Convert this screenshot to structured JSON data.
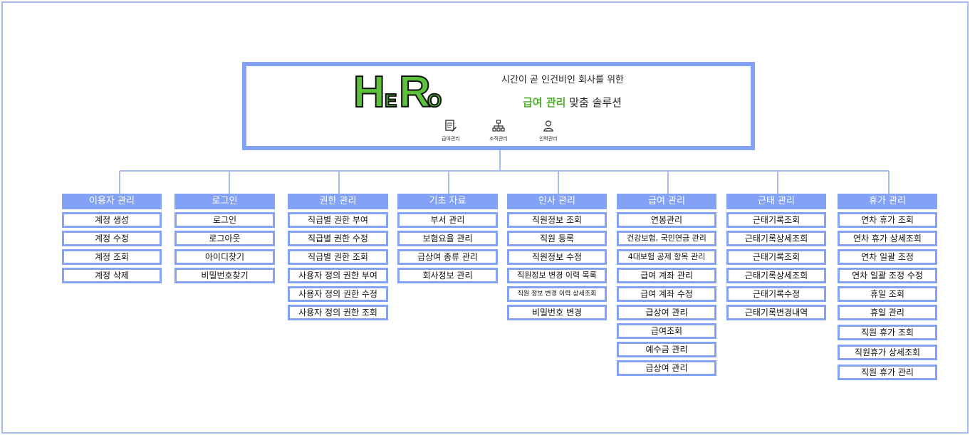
{
  "header": {
    "logo_text": "HeRo",
    "tagline_line1": "시간이 곧 인건비인 회사를 위한",
    "tagline_highlight": "급여 관리",
    "tagline_rest": " 맞춤 솔루션",
    "features": [
      {
        "label": "급여관리",
        "icon": "payroll-document-icon"
      },
      {
        "label": "조직관리",
        "icon": "org-chart-icon"
      },
      {
        "label": "인력관리",
        "icon": "person-icon"
      }
    ]
  },
  "colors": {
    "accent": "#84a2f5",
    "highlight": "#4caf2a"
  },
  "columns": [
    {
      "title": "이용자 관리",
      "items": [
        "계정 생성",
        "계정 수정",
        "계정 조회",
        "계정 삭제"
      ]
    },
    {
      "title": "로그인",
      "items": [
        "로그인",
        "로그아웃",
        "아이디찾기",
        "비밀번호찾기"
      ]
    },
    {
      "title": "권한 관리",
      "items": [
        "직급별 권한 부여",
        "직급별 권한 수정",
        "직급별 권한 조회",
        "사용자 정의 권한 부여",
        "사용자 정의 권한 수정",
        "사용자 정의 권한 조회"
      ]
    },
    {
      "title": "기초 자료",
      "items": [
        "부서 관리",
        "보험요율 관리",
        "급상여 종류 관리",
        "회사정보 관리"
      ]
    },
    {
      "title": "인사 관리",
      "items": [
        "직원정보 조회",
        "직원 등록",
        "직원정보 수정",
        "직원정보 변경 이력 목록",
        "직원 정보 변경 이력 상세조회",
        "비밀번호 변경"
      ]
    },
    {
      "title": "급여 관리",
      "items": [
        "연봉관리",
        "건강보험, 국민연금 관리",
        "4대보험 공제 항목 관리",
        "급여 계좌 관리",
        "급여 계좌 수정",
        "급상여 관리",
        "급여조회",
        "예수금 관리",
        "급상여 관리"
      ]
    },
    {
      "title": "근태 관리",
      "items": [
        "근태기록조회",
        "근태기록상세조회",
        "근태기록조회",
        "근태기록상세조회",
        "근태기록수정",
        "근태기록변경내역"
      ]
    },
    {
      "title": "휴가 관리",
      "items": [
        "연차 휴가 조회",
        "연차 휴가 상세조회",
        "연차 일괄 조정",
        "연차 일괄 조정 수정",
        "휴일 조회",
        "휴일 관리",
        "직원 휴가 조회",
        "직원휴가 상세조회",
        "직원 휴가 관리"
      ]
    }
  ]
}
